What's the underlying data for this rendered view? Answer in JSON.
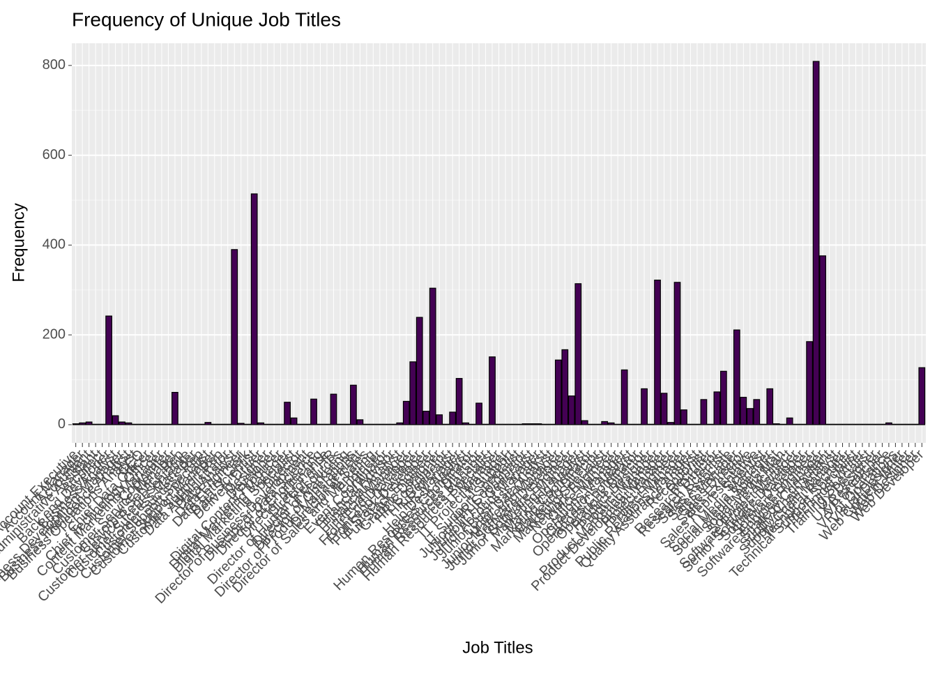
{
  "chart_data": {
    "type": "bar",
    "title": "Frequency of Unique Job Titles",
    "x_label": "Job Titles",
    "y_label": "Frequency",
    "categories": [
      "Account Executive",
      "Account Manager",
      "Accountant",
      "Administrative Assistant",
      "Architect",
      "Back end Developer",
      "Business Analyst",
      "Business Development Manager",
      "Business Intelligence Analyst",
      "Business Operations Analyst",
      "CEO",
      "Chief Data Officer",
      "Chief Technology Officer",
      "Content Marketing Manager",
      "Copywriter",
      "Customer Service Manager",
      "Customer Service Rep",
      "Customer Service Representative",
      "Customer Success Manager",
      "Customer Success Rep",
      "Customer Support Specialist",
      "Customer Support Manager",
      "Customer Support Rep",
      "Data Administrator",
      "Data Analyst",
      "Data Engineer",
      "Data Entry Clerk",
      "Data Scientist",
      "Delivery Driver",
      "Designer",
      "Developer",
      "Digital Content Producer",
      "Digital Marketing Manager",
      "Digital Marketing Specialist",
      "Director",
      "Director of Business Development",
      "Director of Data Science",
      "Director of Engineering",
      "Director of Finance",
      "Director of HR",
      "Director of Human Resources",
      "Director of Marketing",
      "Director of Operations",
      "Director of Product Management",
      "Director of Sales",
      "Director of Sales and Marketing",
      "Engineer",
      "Event Coordinator",
      "Financial Advisor",
      "Financial Analyst",
      "Financial Manager",
      "Front End Developer",
      "Front end Developer",
      "Full Stack Developer",
      "Full Stack Engineer",
      "Graphic Designer",
      "HR Coordinator",
      "HR Generalist",
      "HR Manager",
      "Help Desk Analyst",
      "Human Resources Coordinator",
      "Human Resources Director",
      "Human Resources Manager",
      "Human Resources Specialist",
      "IT Manager",
      "IT Project Manager",
      "IT Support",
      "IT Support Specialist",
      "Juniour HR Coordinator",
      "Juniour HR Generalist",
      "Junior Account Manager",
      "Junior Business Analyst",
      "Junior Data Analyst",
      "Junior Marketing Manager",
      "Junior Software Developer",
      "Junior Software Engineer",
      "Marketing Manager",
      "Marketing Analyst",
      "Marketing Coordinator",
      "Marketing Director",
      "Marketing Specialist",
      "Network Engineer",
      "Office Manager",
      "Operations Manager",
      "Operations Analyst",
      "Operations Coordinator",
      "Operations Director",
      "Product Designer",
      "Product Manager",
      "Product Marketing Manager",
      "Product Development Manager",
      "Project Engineer",
      "Project Manager",
      "Public Relations Manager",
      "Quality Assurance Analyst",
      "Receptionist",
      "Recruiter",
      "Research Director",
      "Research Scientist",
      "Sales Associate",
      "Sales Manager",
      "Sales Director",
      "Sales Executive",
      "Sales Representative",
      "Scientist",
      "Social Media Manager",
      "Social Media Specialist",
      "Social Media Man",
      "Software Architect",
      "Software Project Manager",
      "Senior Software Developer",
      "Software Developer",
      "Software Engineer",
      "Software Engineer Manager",
      "Strategy Consultant",
      "Supply Chain Analyst",
      "Supply Chain Manager",
      "Technical Recruiter",
      "Technical Support Specialist",
      "Technical Writer",
      "Training Specialist",
      "UX Designer",
      "UX Researcher",
      "VP of Finance",
      "VP of Operations",
      "Visual Designer",
      "Web Content Writer",
      "Web Designer",
      "Web Developer"
    ],
    "values": [
      2,
      4,
      6,
      1,
      1,
      242,
      20,
      6,
      4,
      1,
      1,
      1,
      1,
      1,
      1,
      72,
      1,
      1,
      1,
      1,
      5,
      1,
      1,
      1,
      390,
      3,
      1,
      514,
      4,
      1,
      1,
      1,
      50,
      15,
      1,
      1,
      57,
      1,
      1,
      68,
      1,
      1,
      88,
      11,
      1,
      1,
      1,
      1,
      1,
      4,
      52,
      140,
      239,
      30,
      304,
      22,
      1,
      28,
      103,
      4,
      1,
      48,
      1,
      151,
      1,
      1,
      1,
      1,
      2,
      2,
      2,
      1,
      1,
      144,
      167,
      64,
      314,
      9,
      1,
      1,
      7,
      4,
      1,
      122,
      1,
      1,
      80,
      1,
      322,
      70,
      5,
      317,
      33,
      1,
      1,
      56,
      1,
      73,
      119,
      1,
      211,
      61,
      36,
      56,
      1,
      80,
      2,
      1,
      15,
      1,
      1,
      185,
      809,
      376,
      1,
      1,
      1,
      1,
      1,
      1,
      1,
      1,
      1,
      4,
      1,
      1,
      1,
      1,
      127
    ],
    "color": "#440154",
    "edge_color": "#000000",
    "ylim": [
      -40.45,
      849.45
    ],
    "yticks": [
      0,
      200,
      400,
      600,
      800
    ],
    "grid": true
  }
}
